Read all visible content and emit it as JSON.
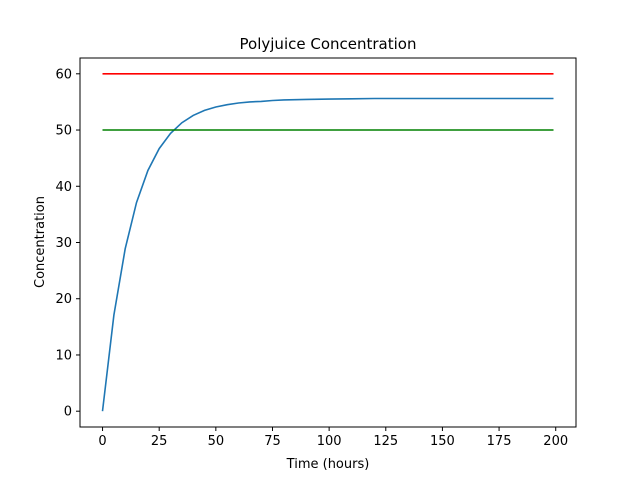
{
  "chart_data": {
    "type": "line",
    "title": "Polyjuice Concentration",
    "xlabel": "Time (hours)",
    "ylabel": "Concentration",
    "xlim": [
      -9.95,
      208.95
    ],
    "ylim": [
      -2.81,
      62.81
    ],
    "xticks": [
      0,
      25,
      50,
      75,
      100,
      125,
      150,
      175,
      200
    ],
    "yticks": [
      0,
      10,
      20,
      30,
      40,
      50,
      60
    ],
    "grid": false,
    "legend": "none",
    "series": [
      {
        "color": "#1f77b4",
        "x": [
          0,
          5,
          10,
          15,
          20,
          25,
          30,
          35,
          40,
          45,
          50,
          55,
          60,
          65,
          70,
          75,
          80,
          90,
          100,
          110,
          120,
          140,
          160,
          180,
          199
        ],
        "y": [
          0,
          17.1,
          28.9,
          37.1,
          42.8,
          46.7,
          49.4,
          51.3,
          52.6,
          53.5,
          54.1,
          54.5,
          54.8,
          55.0,
          55.1,
          55.25,
          55.35,
          55.45,
          55.5,
          55.55,
          55.6,
          55.6,
          55.6,
          55.6,
          55.6
        ]
      },
      {
        "color": "#ff0000",
        "x": [
          0,
          199
        ],
        "y": [
          60,
          60
        ]
      },
      {
        "color": "#008000",
        "x": [
          0,
          199
        ],
        "y": [
          50,
          50
        ]
      }
    ]
  }
}
